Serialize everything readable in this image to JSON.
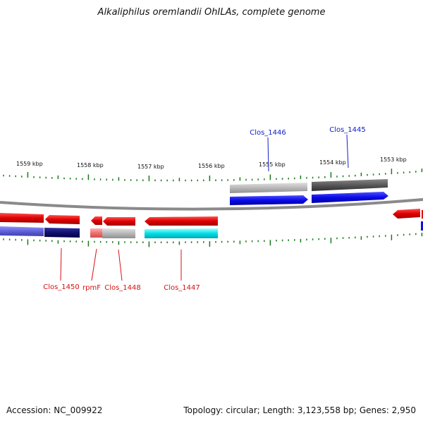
{
  "title": "Alkaliphilus oremlandii OhILAs, complete genome",
  "footer": {
    "accession": "Accession: NC_009922",
    "info": "Topology: circular; Length: 3,123,558 bp; Genes: 2,950"
  },
  "ticks": [
    "1559 kbp",
    "1558 kbp",
    "1557 kbp",
    "1556 kbp",
    "1555 kbp",
    "1554 kbp",
    "1553 kbp"
  ],
  "genes_forward": [
    "Clos_1446",
    "Clos_1445"
  ],
  "genes_reverse": [
    "Clos_1450",
    "rpmF",
    "Clos_1448",
    "Clos_1447"
  ],
  "colors": {
    "backbone": "#8a8a8a",
    "tick": "#1a7a1a",
    "forward_gene": "#1010e0",
    "reverse_gene": "#e01010",
    "forward_label": "#1020c8",
    "reverse_label": "#d81010",
    "cds_gray": "#a8a8a8",
    "cds_dark": "#505050",
    "cds_cyan": "#00d8e0",
    "cds_navy": "#101070"
  }
}
